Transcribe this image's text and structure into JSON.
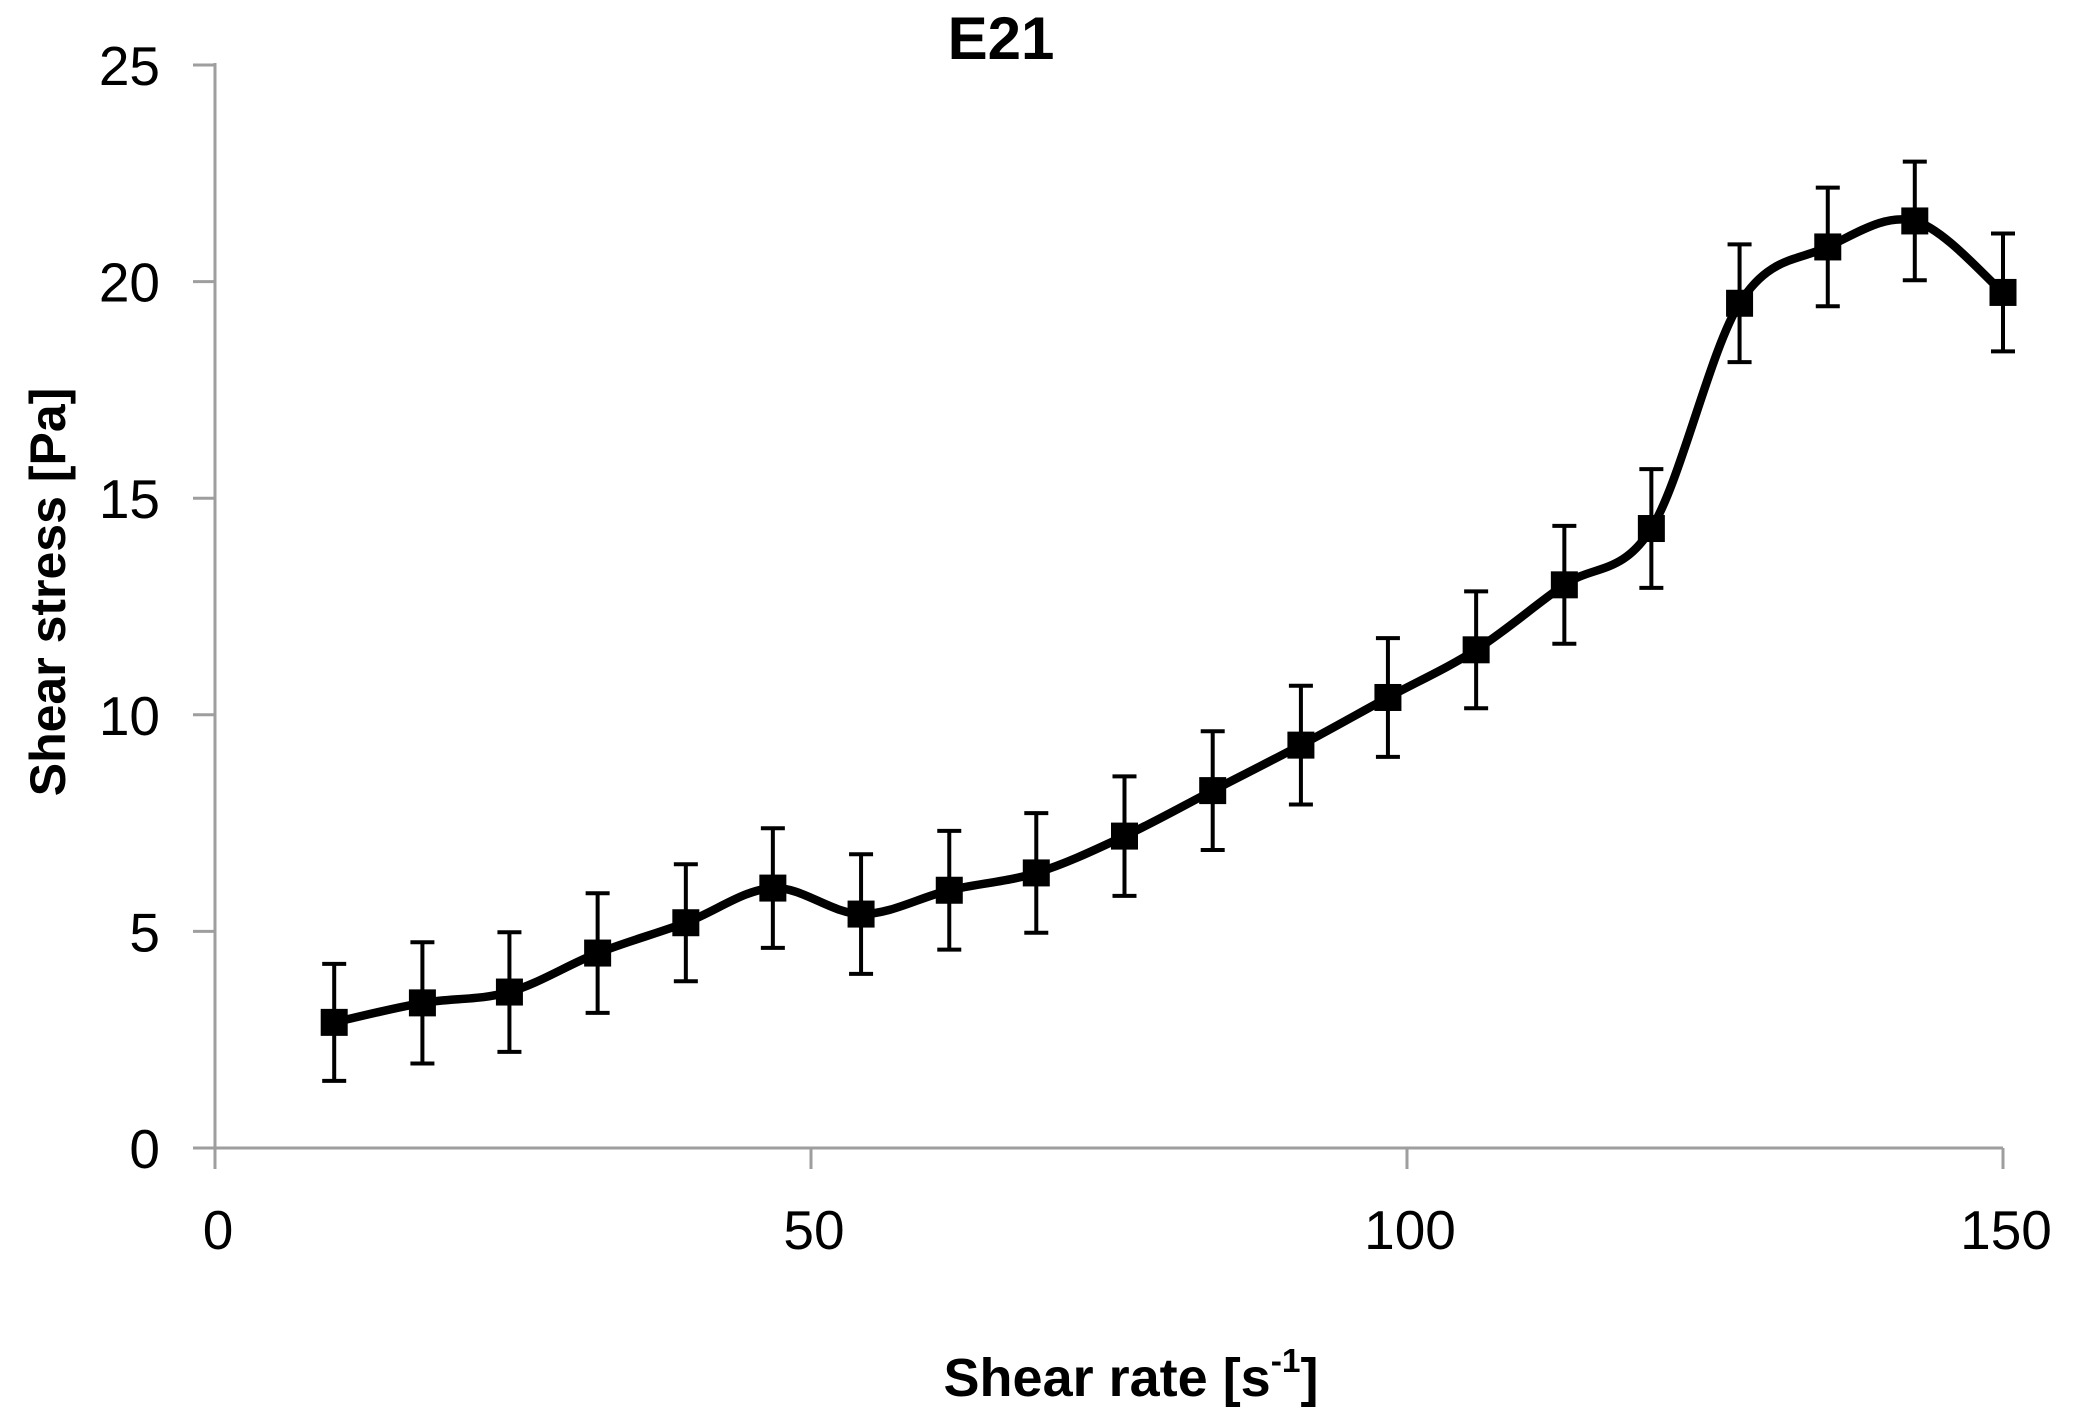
{
  "figure": {
    "title": "E21",
    "x_axis_label": {
      "prefix": "Shear rate [s",
      "superscript": "-1",
      "suffix": "]"
    },
    "y_axis_label": "Shear stress [Pa]"
  },
  "style": {
    "background": "#ffffff",
    "axis_color": "#9e9e9e",
    "text_color": "#000000",
    "series_color": "#000000"
  },
  "chart_data": {
    "type": "line",
    "title": "E21",
    "xlabel": "Shear rate [s⁻¹]",
    "ylabel": "Shear stress [Pa]",
    "xlim": [
      0,
      150
    ],
    "ylim": [
      0,
      25
    ],
    "x_ticks": [
      0,
      50,
      100,
      150
    ],
    "y_ticks": [
      0,
      5,
      10,
      15,
      20,
      25
    ],
    "grid": false,
    "legend_position": "none",
    "series": [
      {
        "name": "E21",
        "marker": "filled-square",
        "line_style": "solid-smoothed",
        "color": "#000000",
        "error_bars": "y",
        "x": [
          10,
          17.4,
          24.7,
          32.1,
          39.5,
          46.8,
          54.2,
          61.6,
          68.9,
          76.3,
          83.7,
          91.1,
          98.4,
          105.8,
          113.2,
          120.5,
          127.9,
          135.3,
          142.6,
          150
        ],
        "y": [
          2.9,
          3.35,
          3.6,
          4.5,
          5.2,
          6.0,
          5.4,
          5.95,
          6.35,
          7.2,
          8.25,
          9.3,
          10.4,
          11.5,
          13.0,
          14.3,
          19.5,
          20.8,
          21.4,
          19.75
        ],
        "y_error": [
          1.35,
          1.4,
          1.38,
          1.38,
          1.35,
          1.38,
          1.38,
          1.37,
          1.38,
          1.38,
          1.37,
          1.37,
          1.37,
          1.35,
          1.36,
          1.37,
          1.36,
          1.37,
          1.37,
          1.36
        ]
      }
    ]
  }
}
